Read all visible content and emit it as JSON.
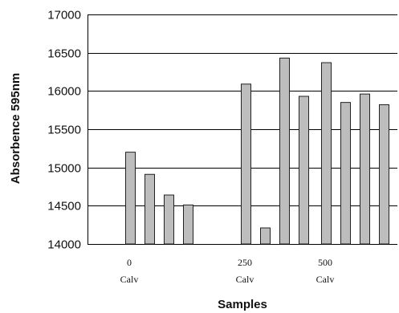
{
  "chart_data": {
    "type": "bar",
    "ylabel": "Absorbence 595nm",
    "xlabel": "Samples",
    "ylim": [
      14000,
      17000
    ],
    "yticks": [
      14000,
      14500,
      15000,
      15500,
      16000,
      16500,
      17000
    ],
    "grid": true,
    "groups": [
      {
        "label_line1": "0",
        "label_line2": "Calv",
        "values": [
          15200,
          14910,
          14640,
          14510
        ]
      },
      {
        "label_line1": "250",
        "label_line2": "Calv",
        "values": [
          16090,
          14210,
          16430,
          15930
        ]
      },
      {
        "label_line1": "500",
        "label_line2": "Calv",
        "values": [
          16370,
          15850,
          15960,
          15820
        ]
      }
    ],
    "colors": {
      "bar_fill": "#bdbdbd",
      "bar_stroke": "#222222"
    }
  }
}
